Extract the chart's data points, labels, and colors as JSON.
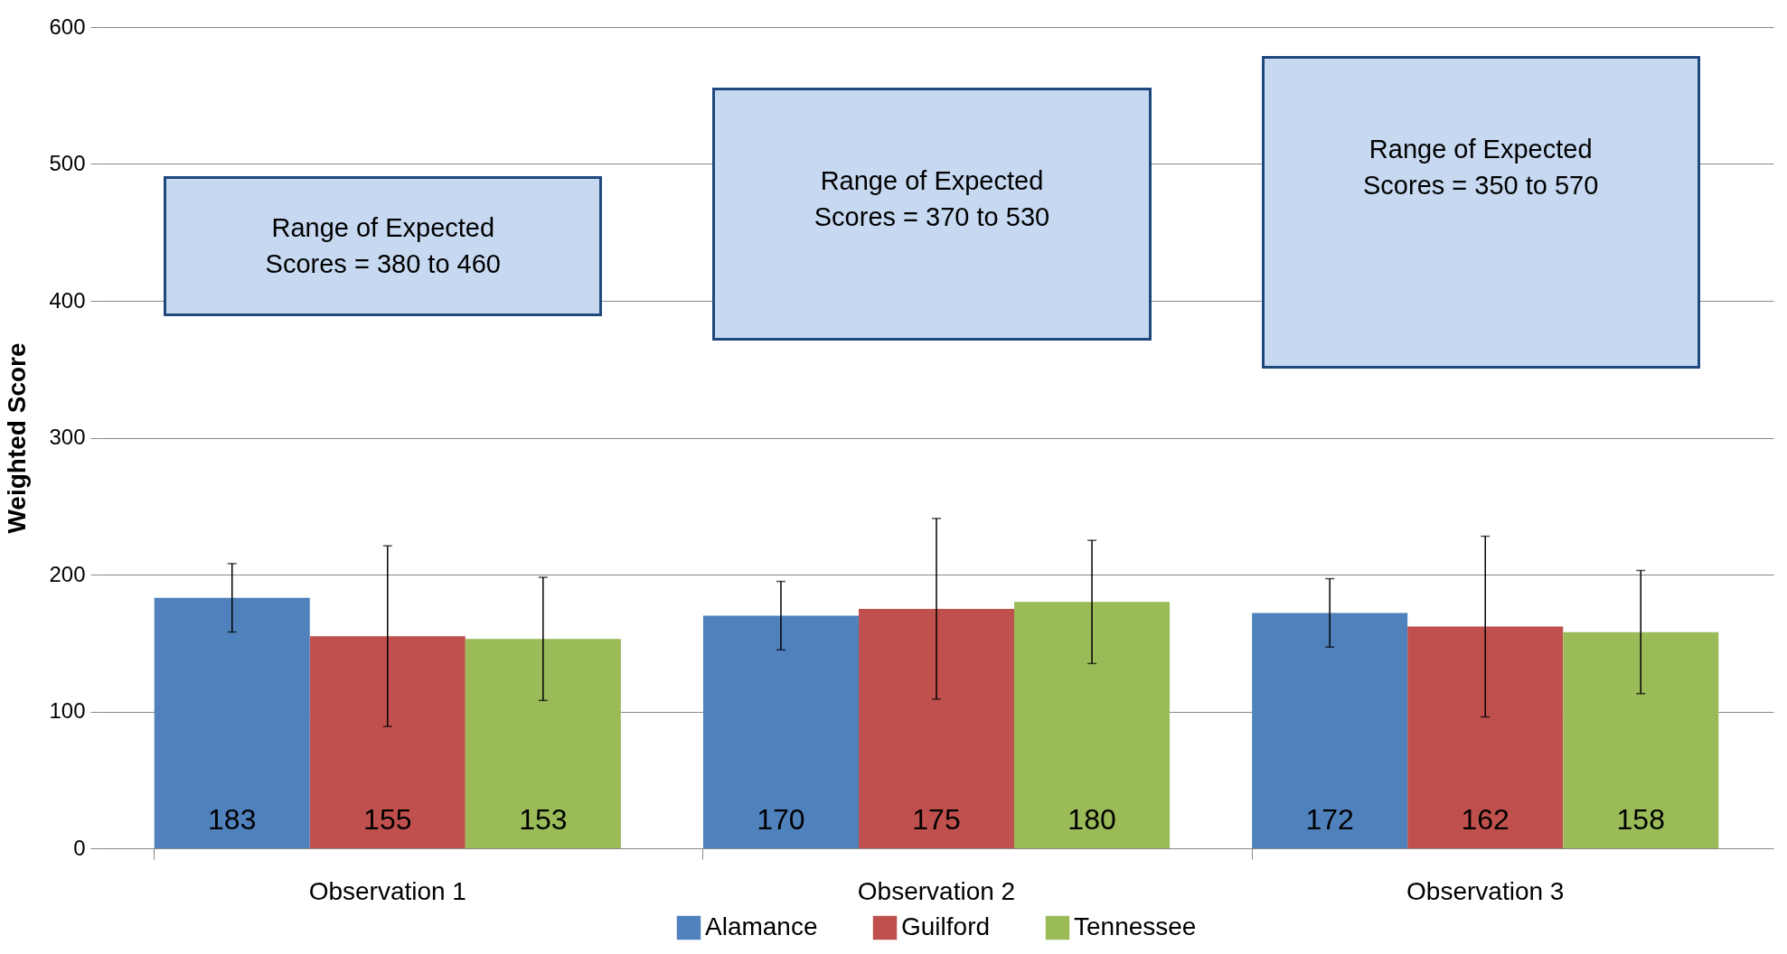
{
  "chart_data": {
    "type": "bar",
    "ylabel": "Weighted Score",
    "categories": [
      "Observation 1",
      "Observation 2",
      "Observation 3"
    ],
    "series": [
      {
        "name": "Alamance",
        "color": "#4f81bd",
        "values": [
          183,
          170,
          172
        ],
        "errors": [
          25,
          25,
          25
        ]
      },
      {
        "name": "Guilford",
        "color": "#c0504d",
        "values": [
          155,
          175,
          162
        ],
        "errors": [
          66,
          66,
          66
        ]
      },
      {
        "name": "Tennessee",
        "color": "#9bbb59",
        "values": [
          153,
          180,
          158
        ],
        "errors": [
          45,
          45,
          45
        ]
      }
    ],
    "ylim": [
      0,
      600
    ],
    "yticks": [
      0,
      100,
      200,
      300,
      400,
      500,
      600
    ],
    "grid": "y",
    "legend": "bottom",
    "data_labels": true,
    "annotations": [
      "Range of Expected Scores = 380 to 460",
      "Range of Expected Scores = 370 to 530",
      "Range of Expected Scores = 350 to 570"
    ]
  }
}
